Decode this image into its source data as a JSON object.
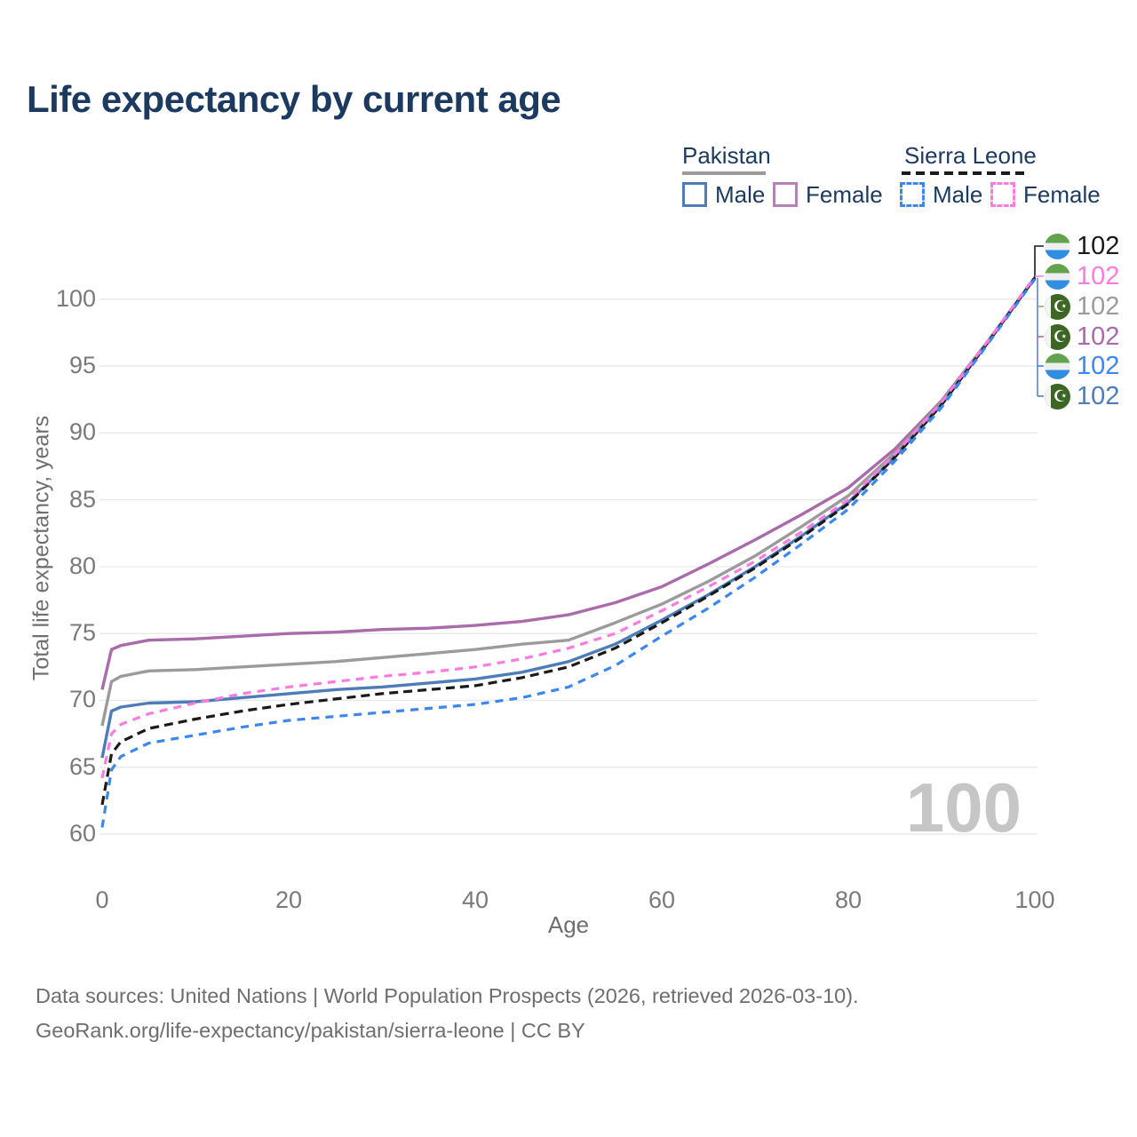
{
  "title": "Life expectancy by current age",
  "axes": {
    "x_title": "Age",
    "y_title": "Total life expectancy, years"
  },
  "watermark": "100",
  "legend": {
    "groups": [
      {
        "label": "Pakistan",
        "line_style": "solid",
        "color": "#9b9b9b",
        "items": [
          {
            "label": "Male",
            "color": "#4d7db8"
          },
          {
            "label": "Female",
            "color": "#b87fb8"
          }
        ]
      },
      {
        "label": "Sierra Leone",
        "line_style": "dashed",
        "color": "#1a1a1a",
        "items": [
          {
            "label": "Male",
            "color": "#3c86ef"
          },
          {
            "label": "Female",
            "color": "#fb7be0"
          }
        ]
      }
    ]
  },
  "icons": {
    "pakistan_flag_glyph": "☪",
    "pakistan_flag_icon": "flag-pakistan-icon",
    "sierra_leone_flag_icon": "flag-sierra-leone-icon"
  },
  "end_labels": [
    {
      "flag": "sierra-leone",
      "series": "Sierra Leone",
      "value": "102",
      "color": "#1a1a1a"
    },
    {
      "flag": "sierra-leone",
      "series": "Sierra Leone Female",
      "value": "102",
      "color": "#fb7be0"
    },
    {
      "flag": "pakistan",
      "series": "Pakistan",
      "value": "102",
      "color": "#9b9b9b"
    },
    {
      "flag": "pakistan",
      "series": "Pakistan Female",
      "value": "102",
      "color": "#a96ba9"
    },
    {
      "flag": "sierra-leone",
      "series": "Sierra Leone Male",
      "value": "102",
      "color": "#3c86ef"
    },
    {
      "flag": "pakistan",
      "series": "Pakistan Male",
      "value": "102",
      "color": "#4d7db8"
    }
  ],
  "footer": {
    "line1": "Data sources: United Nations | World Population Prospects (2026, retrieved 2026-03-10).",
    "line2": "GeoRank.org/life-expectancy/pakistan/sierra-leone | CC BY"
  },
  "chart_data": {
    "type": "line",
    "title": "Life expectancy by current age",
    "xlabel": "Age",
    "ylabel": "Total life expectancy, years",
    "xlim": [
      0,
      100
    ],
    "ylim": [
      60,
      102
    ],
    "x_ticks": [
      0,
      20,
      40,
      60,
      80,
      100
    ],
    "y_ticks": [
      60,
      65,
      70,
      75,
      80,
      85,
      90,
      95,
      100
    ],
    "grid": "horizontal",
    "legend_position": "top-right",
    "x": [
      0,
      1,
      2,
      5,
      10,
      15,
      20,
      25,
      30,
      35,
      40,
      45,
      50,
      55,
      60,
      65,
      70,
      75,
      80,
      85,
      90,
      95,
      100
    ],
    "series": [
      {
        "name": "Pakistan Female",
        "color": "#a96ba9",
        "dash": null,
        "values": [
          70.8,
          73.8,
          74.1,
          74.5,
          74.6,
          74.8,
          75.0,
          75.1,
          75.3,
          75.4,
          75.6,
          75.9,
          76.4,
          77.3,
          78.5,
          80.2,
          82.0,
          83.9,
          85.9,
          88.8,
          92.4,
          96.9,
          101.6
        ]
      },
      {
        "name": "Pakistan",
        "color": "#9b9b9b",
        "dash": null,
        "values": [
          68.1,
          71.4,
          71.8,
          72.2,
          72.3,
          72.5,
          72.7,
          72.9,
          73.2,
          73.5,
          73.8,
          74.2,
          74.5,
          75.8,
          77.2,
          78.9,
          80.8,
          83.0,
          85.3,
          88.5,
          92.3,
          96.9,
          101.6
        ]
      },
      {
        "name": "Pakistan Male",
        "color": "#4d7db8",
        "dash": null,
        "values": [
          65.7,
          69.2,
          69.5,
          69.8,
          69.9,
          70.2,
          70.5,
          70.8,
          71.0,
          71.3,
          71.6,
          72.1,
          72.9,
          74.2,
          76.0,
          77.9,
          80.0,
          82.3,
          84.8,
          88.2,
          92.1,
          96.8,
          101.6
        ]
      },
      {
        "name": "Sierra Leone",
        "color": "#1a1a1a",
        "dash": "10 6",
        "values": [
          62.2,
          66.0,
          66.9,
          67.9,
          68.6,
          69.2,
          69.7,
          70.1,
          70.5,
          70.8,
          71.1,
          71.7,
          72.5,
          73.9,
          75.8,
          77.8,
          79.9,
          82.2,
          84.7,
          88.2,
          92.1,
          96.8,
          101.6
        ]
      },
      {
        "name": "Sierra Leone Male",
        "color": "#3c86ef",
        "dash": "9 7",
        "values": [
          60.5,
          64.8,
          65.8,
          66.8,
          67.4,
          68.0,
          68.5,
          68.8,
          69.1,
          69.4,
          69.7,
          70.2,
          71.0,
          72.6,
          74.8,
          76.9,
          79.2,
          81.7,
          84.3,
          87.9,
          91.9,
          96.7,
          101.5
        ]
      },
      {
        "name": "Sierra Leone Female",
        "color": "#fb7be0",
        "dash": "9 7",
        "values": [
          64.2,
          67.5,
          68.2,
          69.0,
          69.8,
          70.5,
          71.0,
          71.4,
          71.8,
          72.1,
          72.5,
          73.1,
          73.9,
          75.0,
          76.7,
          78.5,
          80.4,
          82.6,
          85.0,
          88.4,
          92.3,
          96.9,
          101.7
        ]
      }
    ]
  }
}
